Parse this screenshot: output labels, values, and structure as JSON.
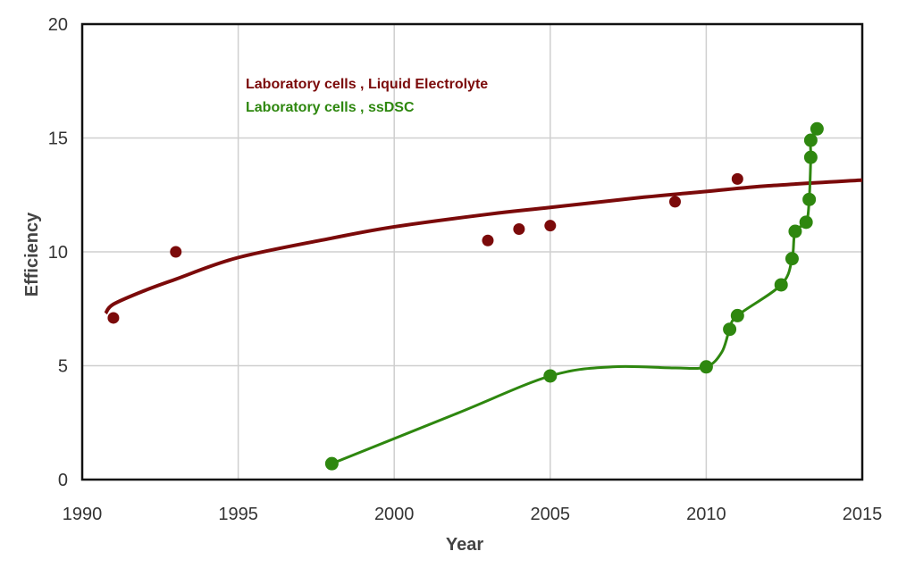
{
  "chart_data": {
    "type": "scatter",
    "title": "",
    "xlabel": "Year",
    "ylabel": "Efficiency",
    "xlim": [
      1990,
      2015
    ],
    "ylim": [
      0,
      20
    ],
    "grid": true,
    "x_ticks": [
      1990,
      1995,
      2000,
      2005,
      2010,
      2015
    ],
    "y_ticks": [
      0,
      5,
      10,
      15,
      20
    ],
    "legend_position": "top-center",
    "series": [
      {
        "name": "Laboratory cells , Liquid Electrolyte",
        "color": "#7b0a0a",
        "points": {
          "x": [
            1991,
            1993,
            2003,
            2004,
            2005,
            2009,
            2011
          ],
          "y": [
            7.1,
            10.0,
            10.5,
            11.0,
            11.15,
            12.2,
            13.2
          ]
        },
        "fit_line": {
          "x": [
            1990.75,
            1991,
            1992,
            1993,
            1995,
            1998,
            2000,
            2003,
            2005,
            2008,
            2010,
            2012,
            2015
          ],
          "y": [
            7.3,
            7.7,
            8.3,
            8.8,
            9.75,
            10.6,
            11.1,
            11.65,
            11.95,
            12.4,
            12.65,
            12.9,
            13.15
          ]
        }
      },
      {
        "name": "Laboratory cells , ssDSC",
        "color": "#2e870f",
        "points": {
          "x": [
            1998,
            2005,
            2010,
            2010.75,
            2011,
            2012.4,
            2012.75,
            2012.85,
            2013.2,
            2013.3,
            2013.35,
            2013.35,
            2013.55
          ],
          "y": [
            0.7,
            4.55,
            4.95,
            6.6,
            7.2,
            8.55,
            9.7,
            10.9,
            11.3,
            12.3,
            14.15,
            14.9,
            15.4
          ]
        },
        "fit_line": {
          "x": [
            1998,
            2002,
            2005,
            2007,
            2009,
            2010,
            2010.5,
            2010.75,
            2011,
            2012.4,
            2012.75,
            2012.85,
            2013.2,
            2013.3,
            2013.35,
            2013.35,
            2013.55
          ],
          "y": [
            0.7,
            2.9,
            4.55,
            4.95,
            4.9,
            4.95,
            5.6,
            6.6,
            7.2,
            8.55,
            9.7,
            10.9,
            11.3,
            12.3,
            14.15,
            14.9,
            15.4
          ]
        }
      }
    ]
  }
}
